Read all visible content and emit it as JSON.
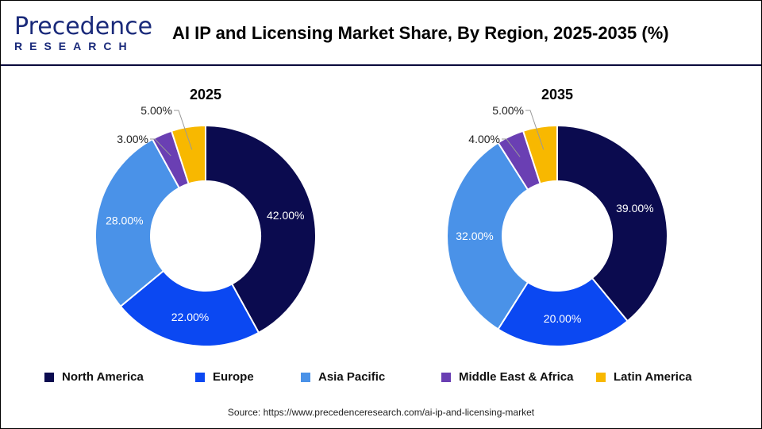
{
  "logo": {
    "line1": "Precedence",
    "line2": "RESEARCH"
  },
  "title": "AI IP and Licensing Market Share, By Region, 2025-2035 (%)",
  "source": "Source: https://www.precedenceresearch.com/ai-ip-and-licensing-market",
  "chart_data": [
    {
      "type": "pie",
      "subtype": "donut",
      "title": "2025",
      "categories": [
        "North America",
        "Europe",
        "Asia Pacific",
        "Middle East & Africa",
        "Latin America"
      ],
      "values": [
        42,
        22,
        28,
        3,
        5
      ],
      "labels": [
        "42.00%",
        "22.00%",
        "28.00%",
        "3.00%",
        "5.00%"
      ]
    },
    {
      "type": "pie",
      "subtype": "donut",
      "title": "2035",
      "categories": [
        "North America",
        "Europe",
        "Asia Pacific",
        "Middle East & Africa",
        "Latin America"
      ],
      "values": [
        39,
        20,
        32,
        4,
        5
      ],
      "labels": [
        "39.00%",
        "20.00%",
        "32.00%",
        "4.00%",
        "5.00%"
      ]
    }
  ],
  "legend": [
    {
      "label": "North America",
      "color": "#0b0b4f"
    },
    {
      "label": "Europe",
      "color": "#0b48f2"
    },
    {
      "label": "Asia Pacific",
      "color": "#4a92e8"
    },
    {
      "label": "Middle East & Africa",
      "color": "#6a3fb3"
    },
    {
      "label": "Latin America",
      "color": "#f8b800"
    }
  ],
  "legend_placement": "bottom"
}
